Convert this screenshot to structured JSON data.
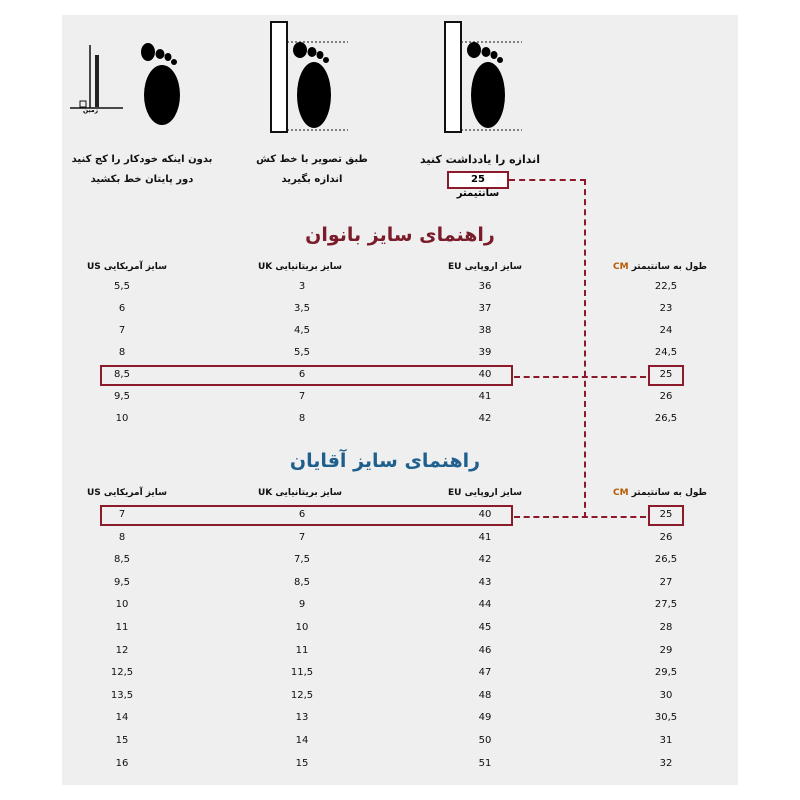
{
  "steps": [
    {
      "caption_line1": "بدون اینکه خودکار را کج کنید",
      "caption_line2": "دور پایتان خط بکشید",
      "ground_label": "زمین"
    },
    {
      "caption_line1": "طبق تصویر با خط کش",
      "caption_line2": "اندازه بگیرید"
    },
    {
      "caption_line1": "اندازه را یادداشت کنید",
      "measurement": "25 سانتیمتر"
    }
  ],
  "colors": {
    "women_title": "#7a1c2a",
    "men_title": "#1e5f8e",
    "highlight": "#8b1a2b",
    "cm_header": "#b55a00"
  },
  "headers": {
    "us": "سایز آمریکایی US",
    "uk": "سایز بریتانیایی UK",
    "eu": "سایز اروپایی EU",
    "cm_text": "طول به سانتیمتر",
    "cm_unit": "CM"
  },
  "women": {
    "title": "راهنمای سایز بانوان",
    "highlight_index": 4,
    "rows": [
      {
        "us": "5,5",
        "uk": "3",
        "eu": "36",
        "cm": "22,5"
      },
      {
        "us": "6",
        "uk": "3,5",
        "eu": "37",
        "cm": "23"
      },
      {
        "us": "7",
        "uk": "4,5",
        "eu": "38",
        "cm": "24"
      },
      {
        "us": "8",
        "uk": "5,5",
        "eu": "39",
        "cm": "24,5"
      },
      {
        "us": "8,5",
        "uk": "6",
        "eu": "40",
        "cm": "25"
      },
      {
        "us": "9,5",
        "uk": "7",
        "eu": "41",
        "cm": "26"
      },
      {
        "us": "10",
        "uk": "8",
        "eu": "42",
        "cm": "26,5"
      }
    ]
  },
  "men": {
    "title": "راهنمای سایز آقایان",
    "highlight_index": 0,
    "rows": [
      {
        "us": "7",
        "uk": "6",
        "eu": "40",
        "cm": "25"
      },
      {
        "us": "8",
        "uk": "7",
        "eu": "41",
        "cm": "26"
      },
      {
        "us": "8,5",
        "uk": "7,5",
        "eu": "42",
        "cm": "26,5"
      },
      {
        "us": "9,5",
        "uk": "8,5",
        "eu": "43",
        "cm": "27"
      },
      {
        "us": "10",
        "uk": "9",
        "eu": "44",
        "cm": "27,5"
      },
      {
        "us": "11",
        "uk": "10",
        "eu": "45",
        "cm": "28"
      },
      {
        "us": "12",
        "uk": "11",
        "eu": "46",
        "cm": "29"
      },
      {
        "us": "12,5",
        "uk": "11,5",
        "eu": "47",
        "cm": "29,5"
      },
      {
        "us": "13,5",
        "uk": "12,5",
        "eu": "48",
        "cm": "30"
      },
      {
        "us": "14",
        "uk": "13",
        "eu": "49",
        "cm": "30,5"
      },
      {
        "us": "15",
        "uk": "14",
        "eu": "50",
        "cm": "31"
      },
      {
        "us": "16",
        "uk": "15",
        "eu": "51",
        "cm": "32"
      }
    ]
  }
}
